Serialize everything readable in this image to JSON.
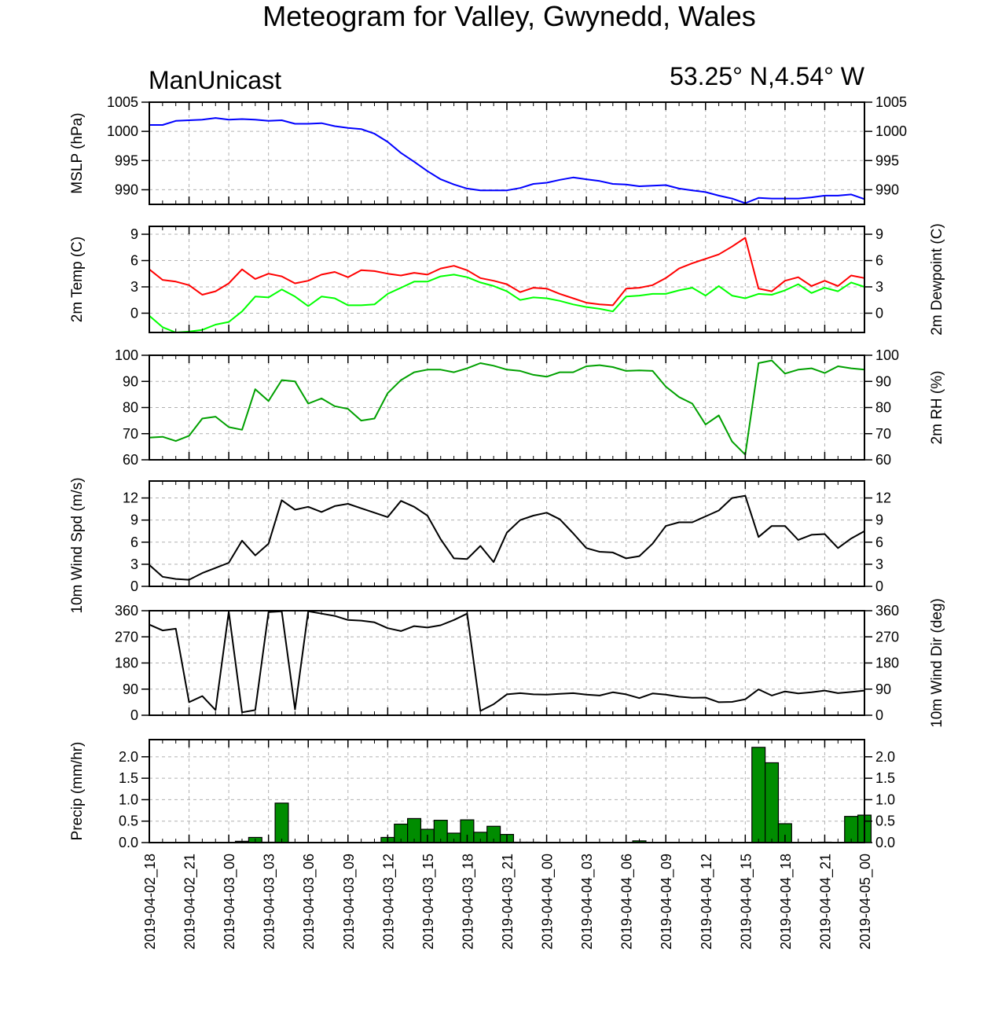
{
  "page": {
    "title": "Meteogram for Valley, Gwynedd, Wales",
    "model": "ManUnicast",
    "location": "53.25° N,4.54° W"
  },
  "x_axis": {
    "tick_labels": [
      "2019-04-02_18",
      "2019-04-02_21",
      "2019-04-03_00",
      "2019-04-03_03",
      "2019-04-03_06",
      "2019-04-03_09",
      "2019-04-03_12",
      "2019-04-03_15",
      "2019-04-03_18",
      "2019-04-03_21",
      "2019-04-04_00",
      "2019-04-04_03",
      "2019-04-04_06",
      "2019-04-04_09",
      "2019-04-04_12",
      "2019-04-04_15",
      "2019-04-04_18",
      "2019-04-04_21",
      "2019-04-05_00"
    ],
    "range_hours": [
      0,
      54
    ],
    "tick_every_hours": 3
  },
  "colors": {
    "mslp": "#0000ff",
    "temp": "#ff0000",
    "dewpoint": "#00ff00",
    "rh": "#00a000",
    "wind": "#000000",
    "precip_fill": "#008c00",
    "grid": "#b0b0b0"
  },
  "chart_data": [
    {
      "type": "line",
      "ylabel_left": "MSLP (hPa)",
      "ylabel_right": "",
      "ylim": [
        987.5,
        1005
      ],
      "yticks": [
        990,
        995,
        1000,
        1005
      ],
      "ytick_labels": [
        "990",
        "995",
        "1000",
        "1005"
      ],
      "grid": true,
      "series": [
        {
          "color": "#0000ff",
          "x": [
            0,
            1,
            2,
            3,
            4,
            5,
            6,
            7,
            8,
            9,
            10,
            11,
            12,
            13,
            14,
            15,
            16,
            17,
            18,
            19,
            20,
            21,
            22,
            23,
            24,
            25,
            26,
            27,
            28,
            29,
            30,
            31,
            32,
            33,
            34,
            35,
            36,
            37,
            38,
            39,
            40,
            41,
            42,
            43,
            44,
            45,
            46,
            47,
            48,
            49,
            50,
            51,
            52,
            53,
            54
          ],
          "values": [
            1001.1,
            1001.1,
            1001.8,
            1001.9,
            1002.0,
            1002.3,
            1002.0,
            1002.1,
            1002.0,
            1001.8,
            1001.9,
            1001.3,
            1001.3,
            1001.4,
            1000.9,
            1000.6,
            1000.4,
            999.6,
            998.2,
            996.3,
            994.8,
            993.2,
            991.8,
            990.9,
            990.2,
            989.9,
            989.9,
            989.9,
            990.3,
            991.0,
            991.2,
            991.7,
            992.1,
            991.8,
            991.5,
            991.0,
            990.9,
            990.6,
            990.7,
            990.8,
            990.2,
            989.9,
            989.6,
            989.0,
            988.5,
            987.7,
            988.6,
            988.5,
            988.5,
            988.5,
            988.7,
            989.0,
            989.0,
            989.2,
            988.4
          ]
        }
      ]
    },
    {
      "type": "line",
      "ylabel_left": "2m Temp (C)",
      "ylabel_right": "2m Dewpoint (C)",
      "ylim": [
        -2.2,
        9.9
      ],
      "yticks": [
        0,
        3,
        6,
        9
      ],
      "ytick_labels": [
        "0",
        "3",
        "6",
        "9"
      ],
      "grid": true,
      "series": [
        {
          "color": "#ff0000",
          "x": [
            0,
            1,
            2,
            3,
            4,
            5,
            6,
            7,
            8,
            9,
            10,
            11,
            12,
            13,
            14,
            15,
            16,
            17,
            18,
            19,
            20,
            21,
            22,
            23,
            24,
            25,
            26,
            27,
            28,
            29,
            30,
            31,
            32,
            33,
            34,
            35,
            36,
            37,
            38,
            39,
            40,
            41,
            42,
            43,
            44,
            45,
            46,
            47,
            48,
            49,
            50,
            51,
            52,
            53,
            54
          ],
          "values": [
            5.0,
            3.8,
            3.6,
            3.2,
            2.1,
            2.5,
            3.4,
            5.0,
            3.9,
            4.5,
            4.2,
            3.4,
            3.7,
            4.4,
            4.7,
            4.1,
            4.9,
            4.8,
            4.5,
            4.3,
            4.6,
            4.4,
            5.1,
            5.4,
            4.9,
            4.0,
            3.7,
            3.3,
            2.4,
            2.9,
            2.8,
            2.2,
            1.7,
            1.2,
            1.0,
            0.9,
            2.8,
            2.9,
            3.2,
            4.0,
            5.1,
            5.7,
            6.2,
            6.7,
            7.6,
            8.6,
            2.8,
            2.5,
            3.7,
            4.1,
            3.1,
            3.7,
            3.1,
            4.3,
            4.0
          ]
        },
        {
          "color": "#00ff00",
          "x": [
            0,
            1,
            2,
            3,
            4,
            5,
            6,
            7,
            8,
            9,
            10,
            11,
            12,
            13,
            14,
            15,
            16,
            17,
            18,
            19,
            20,
            21,
            22,
            23,
            24,
            25,
            26,
            27,
            28,
            29,
            30,
            31,
            32,
            33,
            34,
            35,
            36,
            37,
            38,
            39,
            40,
            41,
            42,
            43,
            44,
            45,
            46,
            47,
            48,
            49,
            50,
            51,
            52,
            53,
            54
          ],
          "values": [
            -0.3,
            -1.6,
            -2.2,
            -2.1,
            -1.9,
            -1.3,
            -1.0,
            0.2,
            1.9,
            1.8,
            2.7,
            1.9,
            0.8,
            1.9,
            1.7,
            0.9,
            0.9,
            1.0,
            2.2,
            2.9,
            3.6,
            3.6,
            4.2,
            4.4,
            4.1,
            3.5,
            3.1,
            2.5,
            1.5,
            1.8,
            1.7,
            1.4,
            1.0,
            0.7,
            0.5,
            0.2,
            1.9,
            2.0,
            2.2,
            2.2,
            2.6,
            2.9,
            2.0,
            3.1,
            2.0,
            1.7,
            2.2,
            2.1,
            2.6,
            3.3,
            2.3,
            2.9,
            2.5,
            3.5,
            3.0
          ]
        }
      ]
    },
    {
      "type": "line",
      "ylabel_left": "",
      "ylabel_right": "2m RH (%)",
      "ylim": [
        60,
        100
      ],
      "yticks": [
        60,
        70,
        80,
        90,
        100
      ],
      "ytick_labels": [
        "60",
        "70",
        "80",
        "90",
        "100"
      ],
      "grid": true,
      "series": [
        {
          "color": "#00a000",
          "x": [
            0,
            1,
            2,
            3,
            4,
            5,
            6,
            7,
            8,
            9,
            10,
            11,
            12,
            13,
            14,
            15,
            16,
            17,
            18,
            19,
            20,
            21,
            22,
            23,
            24,
            25,
            26,
            27,
            28,
            29,
            30,
            31,
            32,
            33,
            34,
            35,
            36,
            37,
            38,
            39,
            40,
            41,
            42,
            43,
            44,
            45,
            46,
            47,
            48,
            49,
            50,
            51,
            52,
            53,
            54
          ],
          "values": [
            68.5,
            68.8,
            67.2,
            69.2,
            75.8,
            76.5,
            72.5,
            71.5,
            87.0,
            82.5,
            90.5,
            90.0,
            81.5,
            83.5,
            80.5,
            79.5,
            75.0,
            75.8,
            85.5,
            90.5,
            93.5,
            94.5,
            94.5,
            93.5,
            95.0,
            97.0,
            96.0,
            94.5,
            94.0,
            92.5,
            91.8,
            93.5,
            93.5,
            95.8,
            96.2,
            95.5,
            94.0,
            94.2,
            94.0,
            88.0,
            84.0,
            81.5,
            73.5,
            77.0,
            67.0,
            62.0,
            97.0,
            98.0,
            93.0,
            94.5,
            95.0,
            93.2,
            95.8,
            95.0,
            94.5
          ]
        }
      ]
    },
    {
      "type": "line",
      "ylabel_left": "10m Wind Spd (m/s)",
      "ylabel_right": "",
      "ylim": [
        0,
        14.3
      ],
      "yticks": [
        0,
        3,
        6,
        9,
        12
      ],
      "ytick_labels": [
        "0",
        "3",
        "6",
        "9",
        "12"
      ],
      "grid": true,
      "series": [
        {
          "color": "#000000",
          "x": [
            0,
            1,
            2,
            3,
            4,
            5,
            6,
            7,
            8,
            9,
            10,
            11,
            12,
            13,
            14,
            15,
            16,
            17,
            18,
            19,
            20,
            21,
            22,
            23,
            24,
            25,
            26,
            27,
            28,
            29,
            30,
            31,
            32,
            33,
            34,
            35,
            36,
            37,
            38,
            39,
            40,
            41,
            42,
            43,
            44,
            45,
            46,
            47,
            48,
            49,
            50,
            51,
            52,
            53,
            54
          ],
          "values": [
            2.9,
            1.3,
            1.0,
            0.9,
            1.8,
            2.5,
            3.2,
            6.2,
            4.2,
            5.8,
            11.7,
            10.4,
            10.8,
            10.1,
            10.9,
            11.2,
            10.6,
            10.0,
            9.4,
            11.6,
            10.8,
            9.6,
            6.4,
            3.8,
            3.7,
            5.5,
            3.3,
            7.3,
            9.0,
            9.6,
            10.0,
            9.1,
            7.2,
            5.2,
            4.7,
            4.6,
            3.8,
            4.1,
            5.8,
            8.2,
            8.7,
            8.7,
            9.5,
            10.3,
            12.0,
            12.3,
            6.7,
            8.2,
            8.2,
            6.3,
            7.0,
            7.1,
            5.2,
            6.5,
            7.5
          ]
        }
      ]
    },
    {
      "type": "line",
      "ylabel_left": "",
      "ylabel_right": "10m Wind Dir (deg)",
      "ylim": [
        0,
        360
      ],
      "yticks": [
        0,
        90,
        180,
        270,
        360
      ],
      "ytick_labels": [
        "0",
        "90",
        "180",
        "270",
        "360"
      ],
      "grid": true,
      "series": [
        {
          "color": "#000000",
          "x": [
            0,
            1,
            2,
            3,
            4,
            5,
            6,
            7,
            8,
            9,
            10,
            11,
            12,
            13,
            14,
            15,
            16,
            17,
            18,
            19,
            20,
            21,
            22,
            23,
            24,
            25,
            26,
            27,
            28,
            29,
            30,
            31,
            32,
            33,
            34,
            35,
            36,
            37,
            38,
            39,
            40,
            41,
            42,
            43,
            44,
            45,
            46,
            47,
            48,
            49,
            50,
            51,
            52,
            53,
            54
          ],
          "values": [
            312,
            292,
            298,
            45,
            66,
            18,
            357,
            10,
            18,
            355,
            358,
            20,
            358,
            350,
            342,
            328,
            326,
            320,
            300,
            290,
            307,
            302,
            310,
            328,
            350,
            15,
            38,
            72,
            76,
            72,
            71,
            74,
            76,
            71,
            68,
            79,
            72,
            59,
            75,
            71,
            64,
            60,
            61,
            45,
            46,
            55,
            89,
            68,
            82,
            75,
            79,
            85,
            76,
            80,
            85
          ]
        }
      ]
    },
    {
      "type": "bar",
      "ylabel_left": "Precip (mm/hr)",
      "ylabel_right": "",
      "ylim": [
        0,
        2.4
      ],
      "yticks": [
        0.0,
        0.5,
        1.0,
        1.5,
        2.0
      ],
      "ytick_labels": [
        "0.0",
        "0.5",
        "1.0",
        "1.5",
        "2.0"
      ],
      "grid": true,
      "series": [
        {
          "color": "#008c00",
          "x": [
            0,
            1,
            2,
            3,
            4,
            5,
            6,
            7,
            8,
            9,
            10,
            11,
            12,
            13,
            14,
            15,
            16,
            17,
            18,
            19,
            20,
            21,
            22,
            23,
            24,
            25,
            26,
            27,
            28,
            29,
            30,
            31,
            32,
            33,
            34,
            35,
            36,
            37,
            38,
            39,
            40,
            41,
            42,
            43,
            44,
            45,
            46,
            47,
            48,
            49,
            50,
            51,
            52,
            53,
            54
          ],
          "values": [
            0,
            0,
            0,
            0,
            0,
            0,
            0,
            0.03,
            0.12,
            0.01,
            0.92,
            0,
            0,
            0,
            0,
            0,
            0,
            0,
            0.12,
            0.43,
            0.56,
            0.31,
            0.52,
            0.22,
            0.53,
            0.24,
            0.38,
            0.19,
            0.01,
            0.01,
            0,
            0,
            0,
            0,
            0,
            0,
            0,
            0.04,
            0,
            0,
            0,
            0,
            0,
            0,
            0,
            0,
            2.22,
            1.86,
            0.44,
            0,
            0,
            0.01,
            0,
            0.61,
            0.64
          ]
        }
      ]
    }
  ]
}
